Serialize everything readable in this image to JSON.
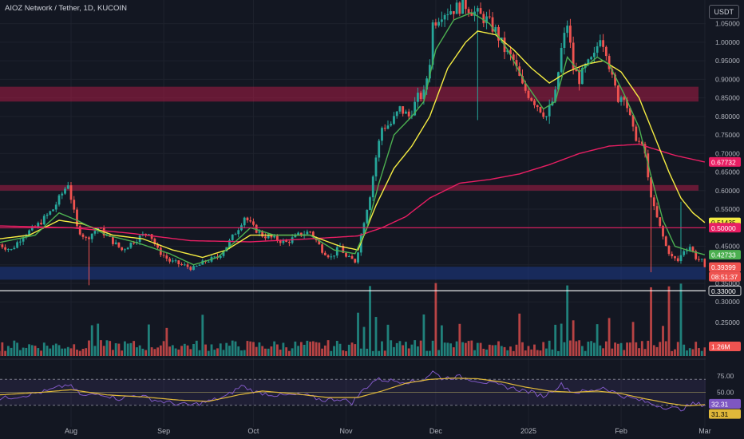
{
  "header": {
    "title": "AIOZ Network / Tether, 1D, KUCOIN",
    "currency": "USDT"
  },
  "colors": {
    "background": "#131722",
    "up": "#26a69a",
    "down": "#ef5350",
    "ema_fast": "#4caf50",
    "ema_mid": "#f5ec42",
    "ema_slow": "#e91e63",
    "rsi": "#7e57c2",
    "rsi_ma": "#e0b83a",
    "resistance_zone": "#b71c47",
    "support_zone": "#1e3a8a"
  },
  "chart_data": [
    {
      "type": "candlestick",
      "yaxis_ticks": [
        0.3,
        0.35,
        0.4,
        0.45,
        0.5,
        0.55,
        0.6,
        0.65,
        0.7,
        0.75,
        0.8,
        0.85,
        0.9,
        0.95,
        1.0,
        1.05
      ],
      "yaxis_labels": [
        "0.30000",
        "0.35000",
        "0.40000",
        "0.45000",
        "0.50000",
        "0.55000",
        "0.60000",
        "0.65000",
        "0.70000",
        "0.75000",
        "0.80000",
        "0.85000",
        "0.90000",
        "0.95000",
        "1.00000",
        "1.05000"
      ],
      "ylim": [
        0.335,
        1.075
      ],
      "xaxis_labels": [
        {
          "label": "Aug",
          "day": 0
        },
        {
          "label": "Sep",
          "day": 31
        },
        {
          "label": "Oct",
          "day": 61
        },
        {
          "label": "Nov",
          "day": 92
        },
        {
          "label": "Dec",
          "day": 122
        },
        {
          "label": "2025",
          "day": 153
        },
        {
          "label": "Feb",
          "day": 184
        },
        {
          "label": "Mar",
          "day": 212
        }
      ],
      "price_keypoints": [
        [
          -24,
          0.455
        ],
        [
          -20,
          0.44
        ],
        [
          -16,
          0.48
        ],
        [
          -12,
          0.5
        ],
        [
          -6,
          0.55
        ],
        [
          -1,
          0.62
        ],
        [
          2,
          0.5
        ],
        [
          5,
          0.47
        ],
        [
          9,
          0.5
        ],
        [
          13,
          0.47
        ],
        [
          17,
          0.44
        ],
        [
          22,
          0.47
        ],
        [
          26,
          0.49
        ],
        [
          29,
          0.44
        ],
        [
          33,
          0.41
        ],
        [
          37,
          0.4
        ],
        [
          41,
          0.39
        ],
        [
          45,
          0.41
        ],
        [
          49,
          0.42
        ],
        [
          52,
          0.45
        ],
        [
          56,
          0.5
        ],
        [
          58,
          0.53
        ],
        [
          61,
          0.5
        ],
        [
          64,
          0.48
        ],
        [
          68,
          0.47
        ],
        [
          72,
          0.46
        ],
        [
          76,
          0.48
        ],
        [
          80,
          0.49
        ],
        [
          84,
          0.44
        ],
        [
          87,
          0.42
        ],
        [
          90,
          0.45
        ],
        [
          92,
          0.42
        ],
        [
          95,
          0.41
        ],
        [
          96,
          0.44
        ],
        [
          98,
          0.52
        ],
        [
          100,
          0.59
        ],
        [
          102,
          0.69
        ],
        [
          104,
          0.77
        ],
        [
          107,
          0.78
        ],
        [
          110,
          0.82
        ],
        [
          113,
          0.8
        ],
        [
          116,
          0.85
        ],
        [
          118,
          0.86
        ],
        [
          120,
          0.95
        ],
        [
          121,
          1.05
        ],
        [
          124,
          1.08
        ],
        [
          128,
          1.09
        ],
        [
          132,
          1.1
        ],
        [
          135,
          1.08
        ],
        [
          139,
          1.06
        ],
        [
          142,
          1.03
        ],
        [
          145,
          0.98
        ],
        [
          148,
          0.95
        ],
        [
          151,
          0.88
        ],
        [
          153,
          0.86
        ],
        [
          156,
          0.83
        ],
        [
          159,
          0.8
        ],
        [
          162,
          0.86
        ],
        [
          164,
          0.98
        ],
        [
          166,
          1.05
        ],
        [
          168,
          0.93
        ],
        [
          170,
          0.9
        ],
        [
          172,
          0.93
        ],
        [
          175,
          0.96
        ],
        [
          177,
          1.02
        ],
        [
          179,
          0.98
        ],
        [
          181,
          0.9
        ],
        [
          183,
          0.85
        ],
        [
          185,
          0.86
        ],
        [
          188,
          0.76
        ],
        [
          190,
          0.73
        ],
        [
          192,
          0.7
        ],
        [
          193,
          0.63
        ],
        [
          195,
          0.55
        ],
        [
          197,
          0.5
        ],
        [
          199,
          0.45
        ],
        [
          201,
          0.42
        ],
        [
          203,
          0.41
        ],
        [
          205,
          0.44
        ],
        [
          207,
          0.45
        ],
        [
          209,
          0.42
        ],
        [
          211,
          0.41
        ],
        [
          212,
          0.394
        ]
      ],
      "ema_fast_keypoints": [
        [
          -24,
          0.46
        ],
        [
          -12,
          0.48
        ],
        [
          -4,
          0.54
        ],
        [
          2,
          0.52
        ],
        [
          12,
          0.48
        ],
        [
          22,
          0.46
        ],
        [
          33,
          0.43
        ],
        [
          41,
          0.4
        ],
        [
          49,
          0.42
        ],
        [
          56,
          0.47
        ],
        [
          60,
          0.5
        ],
        [
          68,
          0.48
        ],
        [
          80,
          0.48
        ],
        [
          88,
          0.44
        ],
        [
          95,
          0.43
        ],
        [
          99,
          0.5
        ],
        [
          103,
          0.62
        ],
        [
          108,
          0.75
        ],
        [
          114,
          0.8
        ],
        [
          118,
          0.84
        ],
        [
          122,
          0.98
        ],
        [
          128,
          1.06
        ],
        [
          134,
          1.08
        ],
        [
          140,
          1.05
        ],
        [
          146,
          0.98
        ],
        [
          152,
          0.89
        ],
        [
          158,
          0.82
        ],
        [
          162,
          0.84
        ],
        [
          166,
          0.96
        ],
        [
          170,
          0.92
        ],
        [
          176,
          0.96
        ],
        [
          180,
          0.94
        ],
        [
          185,
          0.86
        ],
        [
          190,
          0.77
        ],
        [
          194,
          0.64
        ],
        [
          198,
          0.52
        ],
        [
          202,
          0.45
        ],
        [
          206,
          0.44
        ],
        [
          212,
          0.427
        ]
      ],
      "ema_mid_keypoints": [
        [
          -24,
          0.47
        ],
        [
          -14,
          0.48
        ],
        [
          -4,
          0.52
        ],
        [
          4,
          0.51
        ],
        [
          14,
          0.48
        ],
        [
          24,
          0.47
        ],
        [
          34,
          0.44
        ],
        [
          44,
          0.42
        ],
        [
          52,
          0.44
        ],
        [
          60,
          0.48
        ],
        [
          70,
          0.48
        ],
        [
          80,
          0.48
        ],
        [
          90,
          0.45
        ],
        [
          96,
          0.44
        ],
        [
          102,
          0.56
        ],
        [
          108,
          0.66
        ],
        [
          114,
          0.72
        ],
        [
          120,
          0.8
        ],
        [
          126,
          0.93
        ],
        [
          132,
          1.0
        ],
        [
          136,
          1.03
        ],
        [
          142,
          1.02
        ],
        [
          148,
          0.98
        ],
        [
          154,
          0.93
        ],
        [
          160,
          0.89
        ],
        [
          166,
          0.92
        ],
        [
          172,
          0.94
        ],
        [
          178,
          0.95
        ],
        [
          184,
          0.92
        ],
        [
          190,
          0.85
        ],
        [
          196,
          0.73
        ],
        [
          200,
          0.65
        ],
        [
          204,
          0.58
        ],
        [
          208,
          0.54
        ],
        [
          212,
          0.514
        ]
      ],
      "ema_slow_keypoints": [
        [
          -24,
          0.505
        ],
        [
          0,
          0.5
        ],
        [
          20,
          0.485
        ],
        [
          40,
          0.465
        ],
        [
          60,
          0.462
        ],
        [
          80,
          0.47
        ],
        [
          96,
          0.478
        ],
        [
          104,
          0.5
        ],
        [
          112,
          0.53
        ],
        [
          120,
          0.58
        ],
        [
          130,
          0.62
        ],
        [
          140,
          0.63
        ],
        [
          150,
          0.645
        ],
        [
          160,
          0.67
        ],
        [
          170,
          0.7
        ],
        [
          180,
          0.72
        ],
        [
          190,
          0.725
        ],
        [
          196,
          0.71
        ],
        [
          202,
          0.695
        ],
        [
          212,
          0.677
        ]
      ],
      "resistance_zones": [
        [
          0.84,
          0.88
        ],
        [
          0.6,
          0.615
        ]
      ],
      "support_zone": [
        0.36,
        0.395
      ],
      "horizontal_lines": [
        {
          "value": 0.5,
          "color": "#e91e63",
          "label": "0.50000"
        },
        {
          "value": 0.33,
          "color": "#ffffff",
          "label": "0.33000"
        }
      ],
      "price_labels": [
        {
          "value": 0.67732,
          "label": "0.67732",
          "color": "#e91e63"
        },
        {
          "value": 0.51435,
          "label": "0.51435",
          "color": "#f5ec42"
        },
        {
          "value": 0.42733,
          "label": "0.42733",
          "color": "#4caf50"
        },
        {
          "value": 0.39399,
          "label": "0.39399",
          "color": "#ef5350"
        }
      ],
      "countdown": "08:51:37"
    },
    {
      "type": "bar",
      "name": "Volume",
      "last_value_label": "1.26M",
      "spike_days": [
        100,
        122,
        166,
        194,
        200,
        204
      ],
      "big_days": [
        7,
        9,
        26,
        32,
        44,
        96,
        98,
        102,
        106,
        118,
        124,
        130,
        150,
        162,
        164,
        168,
        176,
        180,
        188,
        198
      ]
    },
    {
      "type": "line",
      "name": "RSI",
      "yaxis_ticks": [
        75,
        50
      ],
      "yaxis_labels": [
        "75.00",
        "50.00"
      ],
      "ylim": [
        5,
        95
      ],
      "band": [
        30,
        70
      ],
      "rsi_keypoints": [
        [
          -24,
          40
        ],
        [
          -16,
          45
        ],
        [
          -8,
          52
        ],
        [
          -1,
          62
        ],
        [
          4,
          44
        ],
        [
          10,
          48
        ],
        [
          16,
          40
        ],
        [
          22,
          46
        ],
        [
          28,
          38
        ],
        [
          34,
          33
        ],
        [
          40,
          30
        ],
        [
          46,
          36
        ],
        [
          52,
          44
        ],
        [
          57,
          60
        ],
        [
          62,
          50
        ],
        [
          70,
          45
        ],
        [
          78,
          46
        ],
        [
          84,
          38
        ],
        [
          90,
          40
        ],
        [
          94,
          34
        ],
        [
          98,
          55
        ],
        [
          102,
          70
        ],
        [
          108,
          68
        ],
        [
          114,
          66
        ],
        [
          118,
          70
        ],
        [
          121,
          82
        ],
        [
          124,
          72
        ],
        [
          130,
          74
        ],
        [
          136,
          68
        ],
        [
          142,
          62
        ],
        [
          148,
          56
        ],
        [
          154,
          50
        ],
        [
          158,
          44
        ],
        [
          164,
          62
        ],
        [
          168,
          50
        ],
        [
          174,
          52
        ],
        [
          178,
          58
        ],
        [
          184,
          45
        ],
        [
          190,
          38
        ],
        [
          196,
          30
        ],
        [
          200,
          26
        ],
        [
          204,
          24
        ],
        [
          208,
          32
        ],
        [
          212,
          31
        ]
      ],
      "rsi_ma_keypoints": [
        [
          -24,
          46
        ],
        [
          -10,
          50
        ],
        [
          0,
          54
        ],
        [
          12,
          46
        ],
        [
          24,
          43
        ],
        [
          36,
          38
        ],
        [
          46,
          36
        ],
        [
          56,
          46
        ],
        [
          64,
          52
        ],
        [
          74,
          48
        ],
        [
          86,
          42
        ],
        [
          96,
          42
        ],
        [
          104,
          52
        ],
        [
          112,
          64
        ],
        [
          120,
          70
        ],
        [
          128,
          72
        ],
        [
          136,
          71
        ],
        [
          144,
          66
        ],
        [
          152,
          58
        ],
        [
          160,
          52
        ],
        [
          168,
          50
        ],
        [
          176,
          52
        ],
        [
          184,
          48
        ],
        [
          192,
          40
        ],
        [
          200,
          33
        ],
        [
          206,
          29
        ],
        [
          212,
          31
        ]
      ],
      "value_labels": [
        {
          "label": "32.31",
          "color": "#7e57c2",
          "value": 32.31
        },
        {
          "label": "31.31",
          "color": "#e0b83a",
          "value": 31.31
        }
      ]
    }
  ]
}
